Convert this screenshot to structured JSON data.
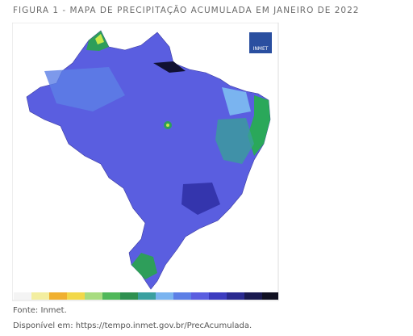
{
  "figure": {
    "title": "FIGURA 1 - MAPA DE PRECIPITAÇÃO ACUMULADA EM JANEIRO DE 2022",
    "source": "Fonte: Inmet.",
    "available": "Disponível em: https://tempo.inmet.gov.br/PrecAcumulada.",
    "logo": "INMET"
  }
}
